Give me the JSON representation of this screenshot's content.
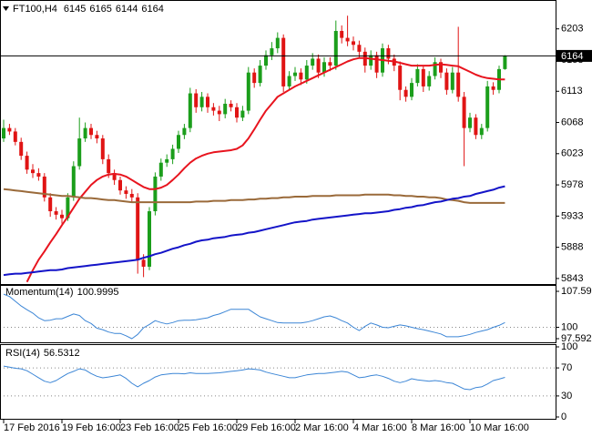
{
  "chart_data": [
    {
      "type": "candlestick",
      "title": "FT100,H4",
      "categories": [
        "17 Feb 2016",
        null,
        null,
        null,
        null,
        null,
        null,
        null,
        null,
        null,
        "19 Feb 16:00",
        null,
        null,
        null,
        null,
        null,
        null,
        null,
        null,
        null,
        "23 Feb 16:00",
        null,
        null,
        null,
        null,
        null,
        null,
        null,
        null,
        null,
        "25 Feb 16:00",
        null,
        null,
        null,
        null,
        null,
        null,
        null,
        null,
        null,
        "29 Feb 16:00",
        null,
        null,
        null,
        null,
        null,
        null,
        null,
        null,
        null,
        "2 Mar 16:00",
        null,
        null,
        null,
        null,
        null,
        null,
        null,
        null,
        null,
        "4 Mar 16:00",
        null,
        null,
        null,
        null,
        null,
        null,
        null,
        null,
        null,
        "8 Mar 16:00",
        null,
        null,
        null,
        null,
        null,
        null,
        null,
        null,
        null,
        "10 Mar 16:00",
        null,
        null,
        null,
        null,
        null,
        null
      ],
      "open": [
        6045,
        6060,
        6055,
        6040,
        6020,
        6000,
        5995,
        5990,
        5960,
        5940,
        5935,
        5930,
        5960,
        6005,
        6045,
        6060,
        6050,
        6045,
        6015,
        5995,
        5985,
        5970,
        5965,
        5960,
        5870,
        5860,
        5940,
        5990,
        6010,
        6015,
        6030,
        6050,
        6060,
        6110,
        6090,
        6105,
        6090,
        6085,
        6080,
        6095,
        6090,
        6075,
        6085,
        6140,
        6125,
        6150,
        6165,
        6175,
        6190,
        6120,
        6135,
        6140,
        6130,
        6150,
        6160,
        6140,
        6155,
        6150,
        6200,
        6190,
        6185,
        6180,
        6170,
        6150,
        6165,
        6140,
        6175,
        6160,
        6150,
        6115,
        6105,
        6125,
        6145,
        6120,
        6135,
        6155,
        6140,
        6115,
        6140,
        6105,
        6060,
        6075,
        6050,
        6060,
        6120,
        6115,
        6145
      ],
      "high": [
        6072,
        6066,
        6060,
        6046,
        6026,
        6008,
        6002,
        5995,
        5966,
        5946,
        5942,
        5966,
        6012,
        6075,
        6068,
        6066,
        6056,
        6050,
        6022,
        6000,
        5990,
        5976,
        5972,
        5966,
        5878,
        5946,
        5996,
        6016,
        6022,
        6036,
        6056,
        6066,
        6118,
        6116,
        6112,
        6110,
        6096,
        6092,
        6102,
        6100,
        6096,
        6092,
        6148,
        6146,
        6158,
        6172,
        6184,
        6198,
        6195,
        6142,
        6148,
        6146,
        6158,
        6168,
        6166,
        6162,
        6162,
        6215,
        6208,
        6222,
        6192,
        6186,
        6176,
        6172,
        6170,
        6182,
        6180,
        6166,
        6156,
        6120,
        6132,
        6152,
        6150,
        6142,
        6162,
        6160,
        6146,
        6148,
        6206,
        6112,
        6082,
        6080,
        6066,
        6128,
        6126,
        6150,
        6165
      ],
      "low": [
        6040,
        6050,
        6035,
        6014,
        5994,
        5988,
        5984,
        5954,
        5932,
        5928,
        5922,
        5926,
        5955,
        6000,
        6040,
        6044,
        6038,
        6008,
        5988,
        5978,
        5964,
        5958,
        5952,
        5850,
        5845,
        5855,
        5934,
        5984,
        6004,
        6008,
        6024,
        6044,
        6054,
        6082,
        6084,
        6082,
        6078,
        6070,
        6074,
        6084,
        6068,
        6070,
        6080,
        6118,
        6120,
        6144,
        6158,
        6168,
        6112,
        6114,
        6128,
        6122,
        6124,
        6144,
        6132,
        6134,
        6142,
        6144,
        6182,
        6178,
        6172,
        6162,
        6140,
        6144,
        6132,
        6134,
        6152,
        6142,
        6100,
        6098,
        6100,
        6120,
        6112,
        6114,
        6130,
        6132,
        6108,
        6110,
        6098,
        6005,
        6054,
        6044,
        6044,
        6055,
        6108,
        6110,
        6144
      ],
      "close": [
        6060,
        6055,
        6040,
        6020,
        6000,
        5995,
        5990,
        5960,
        5940,
        5935,
        5930,
        5960,
        6005,
        6045,
        6060,
        6050,
        6045,
        6015,
        5995,
        5985,
        5970,
        5965,
        5960,
        5870,
        5860,
        5940,
        5990,
        6010,
        6015,
        6030,
        6050,
        6060,
        6110,
        6090,
        6105,
        6090,
        6085,
        6080,
        6095,
        6090,
        6075,
        6085,
        6140,
        6125,
        6150,
        6165,
        6175,
        6190,
        6120,
        6135,
        6140,
        6130,
        6150,
        6160,
        6140,
        6155,
        6150,
        6200,
        6190,
        6185,
        6180,
        6170,
        6150,
        6165,
        6140,
        6175,
        6160,
        6150,
        6115,
        6105,
        6125,
        6145,
        6120,
        6135,
        6155,
        6140,
        6115,
        6140,
        6105,
        6060,
        6075,
        6050,
        6060,
        6120,
        6115,
        6145,
        6164
      ],
      "up_color": "#1b9e1b",
      "down_color": "#e01414",
      "series": [
        {
          "color": "#e8141e",
          "values": [
            null,
            null,
            null,
            null,
            5838,
            5855,
            5870,
            5882,
            5895,
            5907,
            5920,
            5932,
            5945,
            5958,
            5968,
            5978,
            5985,
            5990,
            5993,
            5994,
            5993,
            5990,
            5985,
            5980,
            5975,
            5972,
            5972,
            5974,
            5978,
            5985,
            5993,
            6002,
            6010,
            6016,
            6020,
            6023,
            6025,
            6026,
            6027,
            6028,
            6030,
            6035,
            6045,
            6058,
            6072,
            6085,
            6095,
            6105,
            6110,
            6115,
            6120,
            6124,
            6128,
            6132,
            6136,
            6140,
            6144,
            6148,
            6152,
            6156,
            6159,
            6161,
            6161,
            6160,
            6159,
            6158,
            6157,
            6156,
            6154,
            6152,
            6150,
            6150,
            6150,
            6150,
            6151,
            6152,
            6151,
            6150,
            6149,
            6145,
            6141,
            6137,
            6134,
            6132,
            6131,
            6130,
            6130
          ]
        },
        {
          "color": "#9a6a3a",
          "values": [
            5972,
            5971,
            5970,
            5969,
            5968,
            5967,
            5966,
            5965,
            5964,
            5963,
            5962,
            5962,
            5961,
            5960,
            5959,
            5959,
            5958,
            5957,
            5956,
            5956,
            5955,
            5954,
            5953,
            5953,
            5953,
            5953,
            5953,
            5953,
            5953,
            5953,
            5953,
            5953,
            5953,
            5954,
            5954,
            5954,
            5955,
            5955,
            5955,
            5956,
            5956,
            5956,
            5957,
            5957,
            5958,
            5958,
            5959,
            5959,
            5960,
            5960,
            5961,
            5961,
            5961,
            5962,
            5962,
            5962,
            5962,
            5963,
            5963,
            5963,
            5963,
            5963,
            5964,
            5964,
            5964,
            5964,
            5964,
            5963,
            5963,
            5962,
            5962,
            5961,
            5961,
            5960,
            5960,
            5959,
            5957,
            5956,
            5955,
            5953,
            5952,
            5952,
            5952,
            5952,
            5952,
            5952,
            5952
          ]
        },
        {
          "color": "#1414c8",
          "values": [
            5848,
            5849,
            5850,
            5850,
            5851,
            5852,
            5853,
            5854,
            5855,
            5855,
            5856,
            5858,
            5859,
            5860,
            5861,
            5862,
            5863,
            5864,
            5865,
            5866,
            5867,
            5868,
            5869,
            5870,
            5873,
            5875,
            5878,
            5880,
            5883,
            5886,
            5888,
            5891,
            5893,
            5896,
            5898,
            5899,
            5901,
            5902,
            5903,
            5905,
            5906,
            5907,
            5909,
            5910,
            5912,
            5914,
            5916,
            5918,
            5920,
            5922,
            5924,
            5925,
            5926,
            5928,
            5929,
            5930,
            5931,
            5932,
            5933,
            5934,
            5935,
            5936,
            5937,
            5937,
            5938,
            5939,
            5940,
            5942,
            5943,
            5945,
            5946,
            5948,
            5949,
            5951,
            5953,
            5954,
            5956,
            5958,
            5959,
            5961,
            5962,
            5965,
            5967,
            5969,
            5971,
            5974,
            5976
          ]
        }
      ],
      "ylim": [
        5835,
        6242
      ],
      "yticks": [
        6203,
        6158,
        6113,
        6068,
        6023,
        5978,
        5933,
        5888,
        5843
      ],
      "grid": false
    },
    {
      "type": "line",
      "title": "Momentum(14)",
      "series": [
        {
          "color": "#3c86d6",
          "values": [
            107.0,
            106.5,
            105.5,
            104.5,
            103.7,
            103.0,
            102.0,
            101.4,
            101.5,
            101.8,
            101.8,
            102.3,
            102.8,
            102.5,
            101.4,
            100.8,
            99.8,
            99.5,
            99.0,
            98.7,
            98.7,
            98.2,
            97.6,
            98.5,
            99.9,
            100.6,
            101.4,
            101.0,
            100.7,
            101.0,
            101.4,
            101.5,
            101.5,
            101.6,
            101.8,
            102.0,
            102.5,
            102.8,
            103.3,
            103.8,
            103.8,
            103.8,
            103.8,
            103.0,
            102.2,
            101.8,
            101.4,
            101.0,
            100.9,
            100.9,
            100.9,
            100.9,
            101.1,
            101.4,
            101.8,
            102.2,
            102.4,
            102.0,
            101.4,
            100.9,
            100.0,
            99.3,
            100.2,
            100.9,
            100.5,
            100.0,
            99.9,
            100.2,
            100.5,
            100.3,
            100.0,
            99.7,
            99.5,
            99.2,
            98.9,
            98.6,
            98.0,
            98.0,
            98.0,
            98.2,
            98.5,
            98.9,
            99.2,
            99.5,
            100.0,
            100.4,
            100.9995
          ]
        }
      ],
      "ylim": [
        97.5921,
        107.5937
      ],
      "yticks": [
        107.5937,
        100,
        97.5921
      ],
      "grid": true
    },
    {
      "type": "line",
      "title": "RSI(14)",
      "series": [
        {
          "color": "#3c86d6",
          "values": [
            72.6,
            71,
            69.5,
            68.7,
            66,
            61,
            56,
            51,
            49,
            52,
            57,
            62,
            65,
            68.7,
            67,
            62,
            58,
            55.8,
            57,
            58.5,
            60,
            55,
            48,
            43,
            48,
            52,
            57,
            60,
            61,
            62,
            62,
            61.5,
            63,
            62,
            62,
            62,
            62.5,
            63,
            64,
            65,
            66,
            67,
            68.7,
            68,
            67,
            64,
            62,
            60,
            58,
            56,
            56,
            58,
            60,
            61,
            62,
            62,
            63,
            64,
            65,
            64,
            60,
            56,
            57,
            59,
            60,
            58,
            55,
            51,
            49,
            51,
            54.5,
            53,
            52,
            51,
            52,
            51,
            49,
            48,
            44,
            40,
            39,
            42,
            43,
            47,
            52,
            54,
            56.5312
          ]
        }
      ],
      "ylim": [
        0,
        100
      ],
      "yticks": [
        100,
        70,
        30,
        0
      ],
      "grid": true
    }
  ]
}
